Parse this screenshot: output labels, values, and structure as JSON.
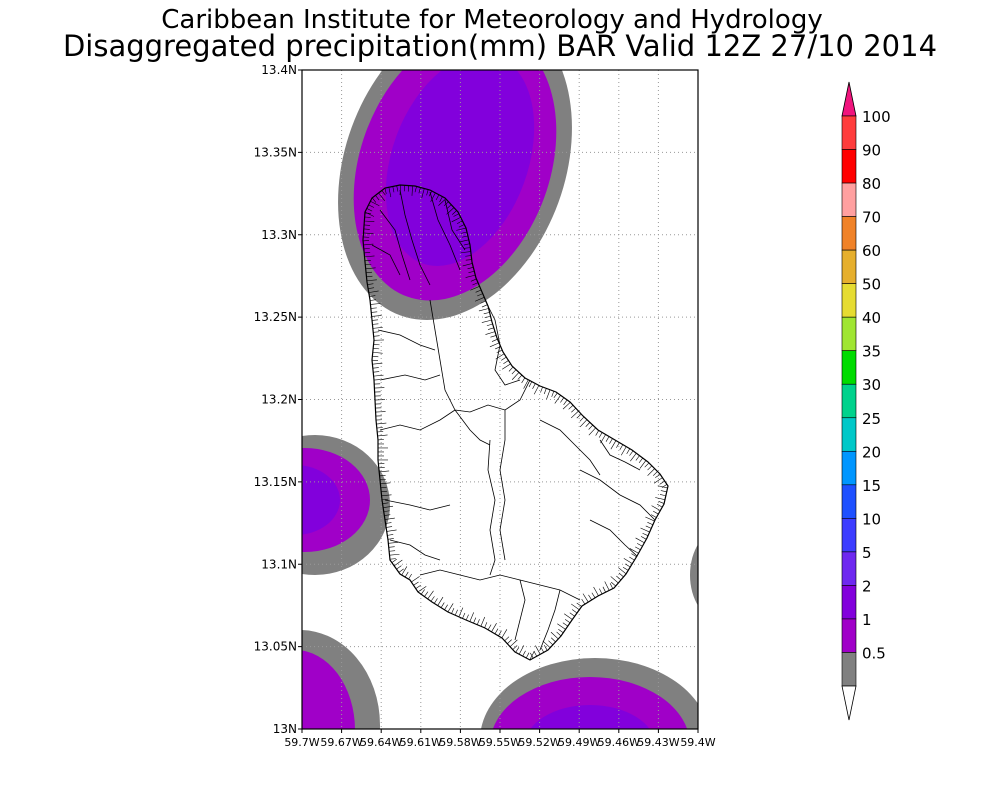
{
  "title": {
    "line1": "Caribbean Institute for Meteorology and Hydrology",
    "line2": "Disaggregated precipitation(mm) BAR Valid 12Z 27/10 2014"
  },
  "map": {
    "lat_labels": [
      "13N",
      "13.05N",
      "13.1N",
      "13.15N",
      "13.2N",
      "13.25N",
      "13.3N",
      "13.35N",
      "13.4N"
    ],
    "lon_labels": [
      "59.7W",
      "59.67W",
      "59.64W",
      "59.61W",
      "59.58W",
      "59.55W",
      "59.52W",
      "59.49W",
      "59.46W",
      "59.43W",
      "59.4W"
    ]
  },
  "legend": {
    "levels": [
      {
        "label": "0.5",
        "color": "#808080"
      },
      {
        "label": "1",
        "color": "#a000c8"
      },
      {
        "label": "2",
        "color": "#8200dc"
      },
      {
        "label": "5",
        "color": "#6e28f0"
      },
      {
        "label": "10",
        "color": "#3c3cff"
      },
      {
        "label": "15",
        "color": "#1e50ff"
      },
      {
        "label": "20",
        "color": "#0096ff"
      },
      {
        "label": "25",
        "color": "#00c8c8"
      },
      {
        "label": "30",
        "color": "#00d28c"
      },
      {
        "label": "35",
        "color": "#00dc00"
      },
      {
        "label": "40",
        "color": "#a0e632"
      },
      {
        "label": "50",
        "color": "#e6dc32"
      },
      {
        "label": "60",
        "color": "#e6af2d"
      },
      {
        "label": "70",
        "color": "#f08228"
      },
      {
        "label": "80",
        "color": "#ffa0a0"
      },
      {
        "label": "90",
        "color": "#ff0000"
      },
      {
        "label": "100",
        "color": "#ff3c3c"
      }
    ],
    "top_color": "#f0147d",
    "bottom_color": "#ffffff"
  }
}
